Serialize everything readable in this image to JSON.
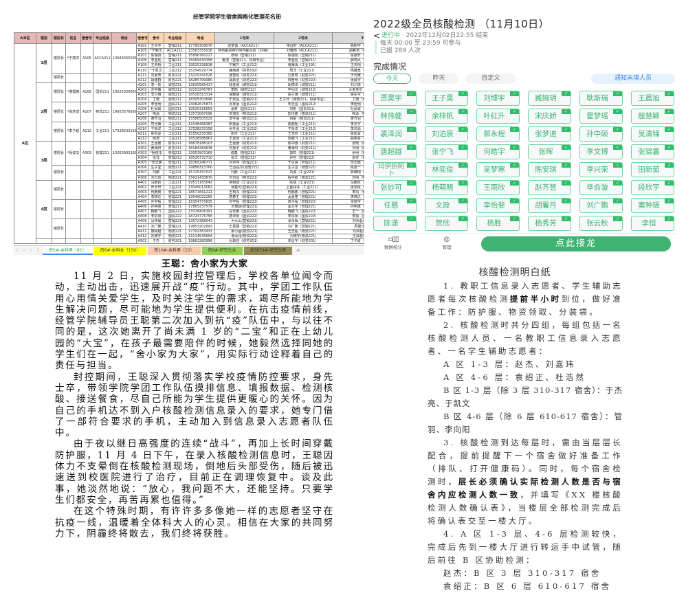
{
  "spreadsheet": {
    "title": "经管学院学生宿舍网格化管理花名册",
    "headers": [
      "A/B区",
      "楼层",
      "楼层长",
      "姓名",
      "宿舍号",
      "专业班级",
      "电话",
      "宿舍号",
      "舍长",
      "专业班级",
      "电话",
      "1号床",
      "2号床",
      "3号床"
    ],
    "area": "A区",
    "floors": [
      {
        "floor": "1层",
        "groups": [
          {
            "title": "楼层长",
            "name": "*于丽洋",
            "room": "A105",
            "class": "ACCA211",
            "phone": "13583355038",
            "rooms": [
              [
                "A101",
                "王青宇",
                "营销211",
                "17795309070",
                "张梦勇（ACCA211）",
                "朱冠轩（ACCA211）",
                "高翔宇（财务211）"
              ],
              [
                "A105",
                "*于丽洋",
                "ACCA211",
                "13583355038",
                "阿布都孜维尔阿布都合孜（20级）",
                "刘春雨（ACCA211）",
                "邵麟浩（ACCA211）"
              ],
              [
                "A107",
                "陈瑞阳",
                "营销211",
                "15896760227",
                "张明（营销211）",
                "陈瑞阳（营销211）",
                "陈晨轩（营销211）"
              ],
              [
                "A108",
                "李金廷",
                "营销211",
                "15069430358",
                "戴浩（营销211，拟转专业）",
                "李金廷（营销211）",
                "薛鸣风（营销211）"
              ],
              [
                "A109",
                "王天翔",
                "工业211",
                "19525326838",
                "宁耀方（工业212）",
                "曹耀禹（工业191）",
                "王天翔（工业211）"
              ],
              [
                "A110",
                "*于凯文",
                "工业212",
                "15154529774",
                "薛丽德（财务192）",
                "周洋（工业211）",
                "杨晟宽（工业211）"
              ]
            ]
          },
          {
            "title": "楼层长",
            "name": "",
            "room": "",
            "class": "",
            "phone": "",
            "rooms": [
              [
                "A111",
                "刘家寿",
                "财务221",
                "13225341526",
                "曹智硕（财务221）",
                "刘家寿（财务221）",
                "于光耀（工业212）"
              ],
              [
                "A112",
                "胡建群",
                "财务221",
                "18285799380",
                "胡启洁（财务222）",
                "钟奋明（财务222）",
                "张晨宇（财务222）"
              ]
            ]
          }
        ]
      },
      {
        "floor": "2层",
        "groups": [
          {
            "title": "楼层长",
            "name": "*谢霞楠",
            "room": "A206",
            "class": "国贸211",
            "phone": "19525326659",
            "rooms": [
              [
                "A201",
                "李一凯",
                "城管211",
                "13635585417",
                "陆金歌（城管211）",
                "胡德洋（城管211）",
                "刘少琦（城管211）"
              ],
              [
                "A202",
                "刘宇鑫",
                "城管212",
                "19153245787",
                "李鸥（城管212）",
                "毕绍文（城管212）",
                "大金克尔（城管212）"
              ],
              [
                "A203",
                "李小朋",
                "城管211",
                "18528313314",
                "徐耀朋（城管211）",
                "屈兰雅（城管211）",
                "姚东宇（城管211）"
              ],
              [
                "A204",
                "丁雨",
                "城管211",
                "18305303696",
                "于松恒（营销211）",
                "王子轩（城管211，拟转专业）",
                "丁雨（城管211）"
              ]
            ]
          },
          {
            "title": "楼层长",
            "name": "*尚彦成",
            "room": "A207",
            "class": "物流211",
            "phone": "19953579569",
            "rooms": [
              [
                "A205",
                "李佳明",
                "国贸212",
                "13082675873",
                "孙家豪（国贸212）",
                "宋志强（国贸212）",
                "李佳明（国贸212）"
              ],
              [
                "A206",
                "杜尚霖",
                "国贸211",
                "19525326659",
                "张奇（国贸211）",
                "刘彬（国贸211）",
                "杜尚霖（国贸211）"
              ],
              [
                "A207",
                "陶源",
                "物流211",
                "13573087096",
                "贺旭东（物流211）",
                "彭佳鹏（物流211）",
                "陶源（物流211）"
              ],
              [
                "A208",
                "黄齐羽",
                "物流211",
                "15586505529",
                "李宇朋（物流211）",
                "周韬（物流211）",
                "黄齐羽（物流211）"
              ]
            ]
          },
          {
            "title": "楼层长",
            "name": "*李子超",
            "room": "A212",
            "class": "工业211",
            "phone": "17338233158",
            "rooms": [
              [
                "A209",
                "司光耀",
                "工业211",
                "13348468387",
                "靳振豪（工业211）",
                "陈鹏翔（工业211）",
                "李光宇（工业211）"
              ],
              [
                "A210",
                "于振洋",
                "工业212",
                "17538233158",
                "张冬嘉（工业212）",
                "于振洋（工业212）",
                "李鸿源（工业212）"
              ],
              [
                "A211",
                "陈凯豪",
                "工业211",
                "15550255365",
                "郭杰（工业211）",
                "王浩然（工业211）",
                "陈凯豪（工业211）"
              ],
              [
                "A212",
                "杨浩",
                "工业211",
                "18526588961",
                "王嘉怡（工业211）",
                "郭鹏飞（工业211）",
                "胡家豪（工业211）"
              ]
            ]
          }
        ]
      },
      {
        "floor": "3层",
        "groups": [
          {
            "title": "楼层长",
            "name": "*杨俊华",
            "room": "A303",
            "class": "管理211",
            "phone": "13053903169",
            "rooms": [
              [
                "A301",
                "王嘉媛",
                "财务211",
                "18678188103",
                "王嘉媛（财务211）",
                "徐冲惠（财务211）",
                "张晓（财务211）"
              ],
              [
                "A302",
                "黄海林",
                "财务211",
                "18184284638",
                "刘振宇（财务211）",
                "黄海林（财务211）",
                "刘明（财务211）"
              ],
              [
                "A303",
                "*杨俊华",
                "管理211",
                "13053903169",
                "成鑫（管理211）",
                "郭鸣（管理211）",
                "张明（管理211）"
              ],
              [
                "A304",
                "张洋",
                "管理212",
                "18526732710",
                "张洋（管理212）",
                "孙哲（管理212）",
                "梁仔（管理212）"
              ],
              [
                "A305",
                "*司志鹏",
                "管理211",
                "18765246771",
                "刘世伟（管理211）",
                "于凤良（管理211）",
                "司志鹏（管理211）"
              ]
            ]
          },
          {
            "title": "楼层长",
            "name": "",
            "room": "",
            "class": "",
            "phone": "",
            "rooms": [
              [
                "A306",
                "生子宜",
                "城管221",
                "19856313760",
                "巴合提尔(城管221)",
                "生子宜（城管221）",
                "陈嘉一（城管221）"
              ],
              [
                "A307",
                "刘鹏",
                "工业221",
                "15725337027",
                "刘鹏（工业221）",
                "刘淇（工业221）",
                "郭博翔（工业221）"
              ],
              [
                "A308",
                "刘日辰",
                "物流221",
                "15621433870",
                "刘日辰（物流221）",
                "程宇航（物流221）",
                "刘明（物流221）"
              ]
            ]
          }
        ]
      },
      {
        "floor": "4层",
        "groups": [
          {
            "title": "楼层长",
            "name": "",
            "room": "",
            "class": "",
            "phone": "",
            "rooms": [
              [
                "A401",
                "马鹏跃",
                "工业221",
                "19511163042",
                "常树成（工业221）",
                "陈斌（工业221）",
                "马鹏跃（工业221）"
              ],
              [
                "A402",
                "乔宇轩",
                "工业221",
                "13045013062",
                "杨鑫可(营销221)",
                "上官润泽（工业221）",
                "张宗栋（工业221）"
              ],
              [
                "A403",
                "何鹏鹏",
                "管理221",
                "18571661211",
                "王桐汉（管理221）",
                "何鹏鹏（管理221）",
                "李凯（管理221）"
              ],
              [
                "A404",
                "李锦达",
                "管理221",
                "19546032265",
                "唐春生（管理221）",
                "孟盖笛（管理221）",
                "李锦达（管理221）"
              ]
            ]
          },
          {
            "title": "楼层长",
            "name": "",
            "room": "",
            "class": "",
            "phone": "",
            "rooms": [
              [
                "A405",
                "乔宇程",
                "管理222",
                "18354775835",
                "乔宇程（管理222）",
                "高子程（管理222）",
                "张俊宇（管理222）"
              ],
              [
                "A406",
                "孙明惠",
                "管理221",
                "17865237579",
                "刘博靖(管理221)",
                "孟文宇（管理221）",
                "孙明惠（管理221）"
              ],
              [
                "A407",
                "韩鹏飞",
                "国贸222",
                "13376406391",
                "段长鹏（国贸222）",
                "韩鹏飞（国贸222）",
                "王一（国贸222）"
              ],
              [
                "A408",
                "李宗阳",
                "国贸222",
                "18724776756",
                "唐洋阳（国贸222）",
                "李宗阳（国贸222）",
                "李振（国贸222）"
              ]
            ]
          },
          {
            "title": "楼层长",
            "name": "",
            "room": "",
            "class": "",
            "phone": "",
            "rooms": [
              [
                "A409",
                "闫伟晨",
                "营销221",
                "13572368043",
                "尹大山(营销221)",
                "张永辉（营销221）",
                "刘乔磊(营销221)"
              ],
              [
                "A410",
                "刘广鹏",
                "营销221",
                "19853202893",
                "王嘉朋（营销221）",
                "刘广鹏（营销221）",
                "周振(营销221)"
              ],
              [
                "A411",
                "康硕越",
                "物流221",
                "17702363431",
                "郝小猛(物流221)",
                "王志超（物流221）",
                "刘洪超(物流221)"
              ],
              [
                "A412",
                "刘博宇",
                "物流221",
                "13114535694",
                "曹泽润(物流221)",
                "刘博宇(物流221)",
                "王昊越(物流221)"
              ]
            ]
          }
        ]
      },
      {
        "floor": "",
        "groups": [
          {
            "title": "",
            "name": "",
            "room": "",
            "class": "",
            "phone": "",
            "rooms": [
              [
                "A501",
                "于杰",
                "财务201",
                "19862280996",
                "迟启佳（财务201）",
                "朱星宇（财务201）",
                "丁子峻（财务201）"
              ]
            ]
          }
        ]
      }
    ],
    "tabs": [
      {
        "label": "南5#-本科男（81）",
        "color": "#ffffff",
        "text": "#2f9e5a",
        "active": true
      },
      {
        "label": "南6#-本科女（150）",
        "color": "#ffff00",
        "text": "#333333"
      },
      {
        "label": "南10#-本科男（15）",
        "color": "#f8cbad",
        "text": "#333333"
      },
      {
        "label": "南9#-研究生女",
        "color": "#92d050",
        "text": "#333333"
      },
      {
        "label": "北3679#-研究生男",
        "color": "#948a54",
        "text": "#333333"
      }
    ],
    "add_tab": "+"
  },
  "app": {
    "title": "2022级全员核酸检测 （11月10日）",
    "back": "<",
    "status": "进行中",
    "end_time": " · 2022年12月02日22:55 结束",
    "schedule": "每天 00:00 至 23:59 可参与",
    "reported": "已报 289 人次",
    "section": "完成情况",
    "filters": [
      "今天",
      "昨天",
      "自定义"
    ],
    "notify": "通知未填人员",
    "accent": "#3eb372",
    "names": [
      "贾昊宇",
      "王子昊",
      "刘博宇",
      "臧婉玥",
      "耿斯瑞",
      "王晨旭",
      "林伟健",
      "余梓帆",
      "叶红升",
      "宋庆娇",
      "霍梦瑶",
      "殷慧颖",
      "裴泽润",
      "刘泊辰",
      "郭永程",
      "张梦迪",
      "孙中硕",
      "吴清锦",
      "唐超越",
      "张宁飞",
      "何皓宇",
      "张晖",
      "李文博",
      "张锦嘉",
      "玛伊热阿卜",
      "林奕俊",
      "吴梦寒",
      "陈安琪",
      "李兴荣",
      "田新茹",
      "张妙可",
      "杨萌晓",
      "王雨欣",
      "赵齐慧",
      "辛俞漩",
      "段欣宇",
      "任慈",
      "文政",
      "李怡斐",
      "胡馨月",
      "刘广鹏",
      "窦种瑶",
      "陈潇",
      "贺欣",
      "杨胜",
      "杨秀芳",
      "张云秋",
      "李恒"
    ],
    "stats_label": "数据统计",
    "manage_label": "管理",
    "relay_button": "点此接龙"
  },
  "article": {
    "title": "王聪：舍小家为大家",
    "paragraphs": [
      "11 月 2 日，实施校园封控管理后，学校各单位闻令而动，主动出击，迅速展开战“疫”行动。其中，学团工作队伍用心用情关爱学生，及时关注学生的需求，竭尽所能地为学生解决问题，尽可能地为学生提供便利。在抗击疫情前线，经管学院辅导员王聪第二次加入到抗“疫”队伍中，与以往不同的是，这次她离开了尚未满 1 岁的“二宝”和正在上幼儿园的“大宝”，在孩子最需要陪伴的时候，她毅然选择同她的学生们在一起，“舍小家为大家”，用实际行动诠释着自己的责任与担当。",
      "封控期间，王聪深入贯彻落实学校疫情防控要求，身先士卒，带领学院学团工作队伍摸排信息、填报数据、检测核酸、接送餐食，尽自己所能为学生提供更暖心的关怀。因为自己的手机达不到入户核酸检测信息录入的要求，她专门借了一部符合要求的手机，主动加入到信息录入志愿者队伍中。",
      "由于夜以继日高强度的连续“战斗”，再加上长时间穿戴防护服，11 月 4 日下午，在录入核酸检测信息时，王聪因体力不支晕倒在核酸检测现场，倒地后头部受伤，随后被迅速送到校医院进行了治疗，目前正在调理恢复中。谈及此事，她淡然地说：“放心，我问题不大，还能坚持。只要学生们都安全，再苦再累也值得。”",
      "在这个特殊时期，有许许多多像她一样的志愿者坚守在抗疫一线，温暖着全体科大人的心灵。相信在大家的共同努力下，阴霾终将散去，我们终将获胜。"
    ]
  },
  "doc": {
    "title": "核酸检测明白纸",
    "p1_a": "1. 教职工信息录入志愿者、学生辅助志愿者每次核酸检测",
    "p1_b": "提前半小时",
    "p1_c": "到位，做好准备工作：防护服、物资领取、分装袋。",
    "p2": "2. 核酸检测时共分四组，每组包括一名核酸检测人员、一名教职工信息录入志愿者、一名学生辅助志愿者：",
    "groups": [
      "A 区 1-3 层：赵杰、刘嘉玮",
      "A 区 4-6 层：袁绍正、杜浩然",
      "B 区 1-3 层（除 3 层 310-317 宿舍）：于杰亮、于凯文",
      "B 区 4-6 层（除 6 层 610-617 宿舍）：管羽、李向阳"
    ],
    "p3_a": "3. 核酸检测到达每层时，需由当层层长配合，提前提醒下一个宿舍做好准备工作（排队、打开健康码）。同时，每个宿舍检测时，",
    "p3_b": "层长必须确认实际检测人数是否与宿舍内应检测人数一致",
    "p3_c": "，并填写《XX 楼核酸检测人数确认表》，当楼层全部检测完成后将确认表交至一楼大厅。",
    "p4": "4. A 区 1-3 层、4-6 层检测较快，完成后先到一楼大厅进行转运手中试管，随后前往 B 区协助检测：",
    "assign": [
      "赵杰：B 区 3 层 310-317 宿舍",
      "袁绍正：B 区 6 层 610-617 宿舍"
    ]
  }
}
